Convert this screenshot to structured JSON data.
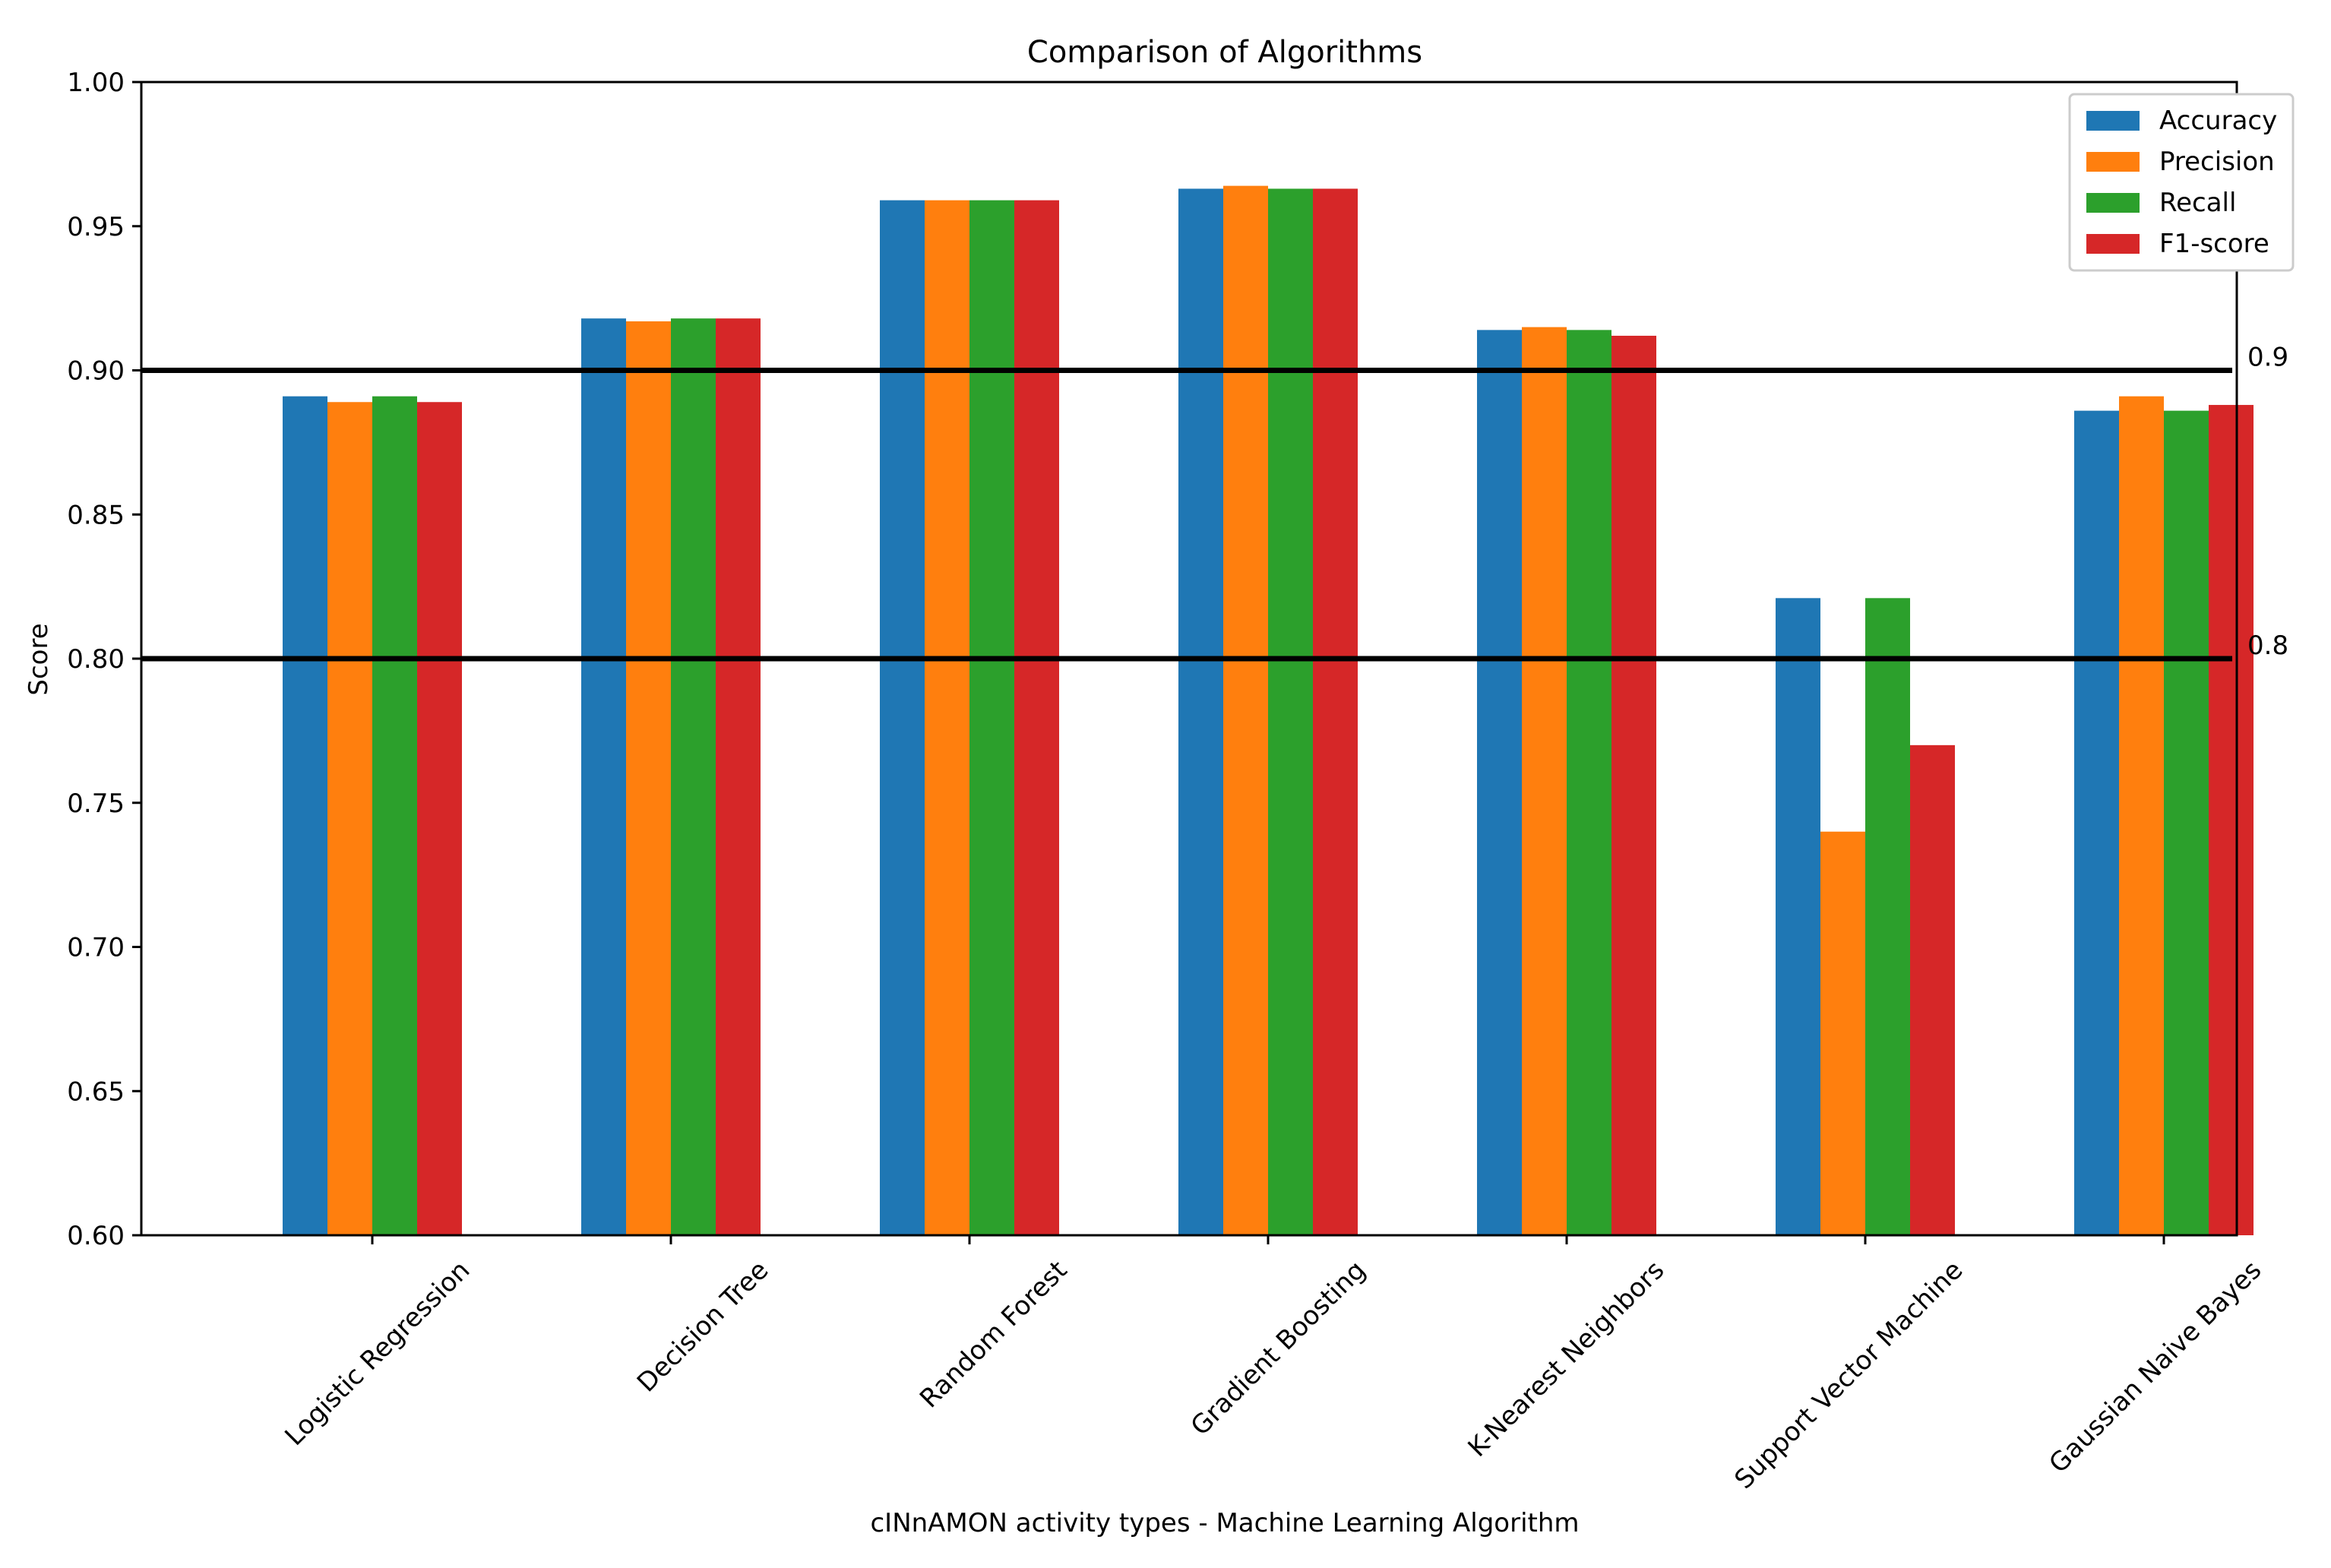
{
  "chart_data": {
    "type": "bar",
    "title": "Comparison of Algorithms",
    "xlabel": "cINnAMON activity types - Machine Learning Algorithm",
    "ylabel": "Score",
    "ylim": [
      0.6,
      1.0
    ],
    "yticks": [
      "0.60",
      "0.65",
      "0.70",
      "0.75",
      "0.80",
      "0.85",
      "0.90",
      "0.95",
      "1.00"
    ],
    "categories": [
      "Logistic Regression",
      "Decision Tree",
      "Random Forest",
      "Gradient Boosting",
      "K-Nearest Neighbors",
      "Support Vector Machine",
      "Gaussian Naive Bayes"
    ],
    "series": [
      {
        "name": "Accuracy",
        "color": "#1f77b4",
        "values": [
          0.891,
          0.918,
          0.959,
          0.963,
          0.914,
          0.821,
          0.886
        ]
      },
      {
        "name": "Precision",
        "color": "#ff7f0e",
        "values": [
          0.889,
          0.917,
          0.959,
          0.964,
          0.915,
          0.74,
          0.891
        ]
      },
      {
        "name": "Recall",
        "color": "#2ca02c",
        "values": [
          0.891,
          0.918,
          0.959,
          0.963,
          0.914,
          0.821,
          0.886
        ]
      },
      {
        "name": "F1-score",
        "color": "#d62728",
        "values": [
          0.889,
          0.918,
          0.959,
          0.963,
          0.912,
          0.77,
          0.888
        ]
      }
    ],
    "reference_lines": [
      {
        "value": 0.9,
        "label": "0.9"
      },
      {
        "value": 0.8,
        "label": "0.8"
      }
    ],
    "legend_position": "top-right",
    "grid": false
  }
}
